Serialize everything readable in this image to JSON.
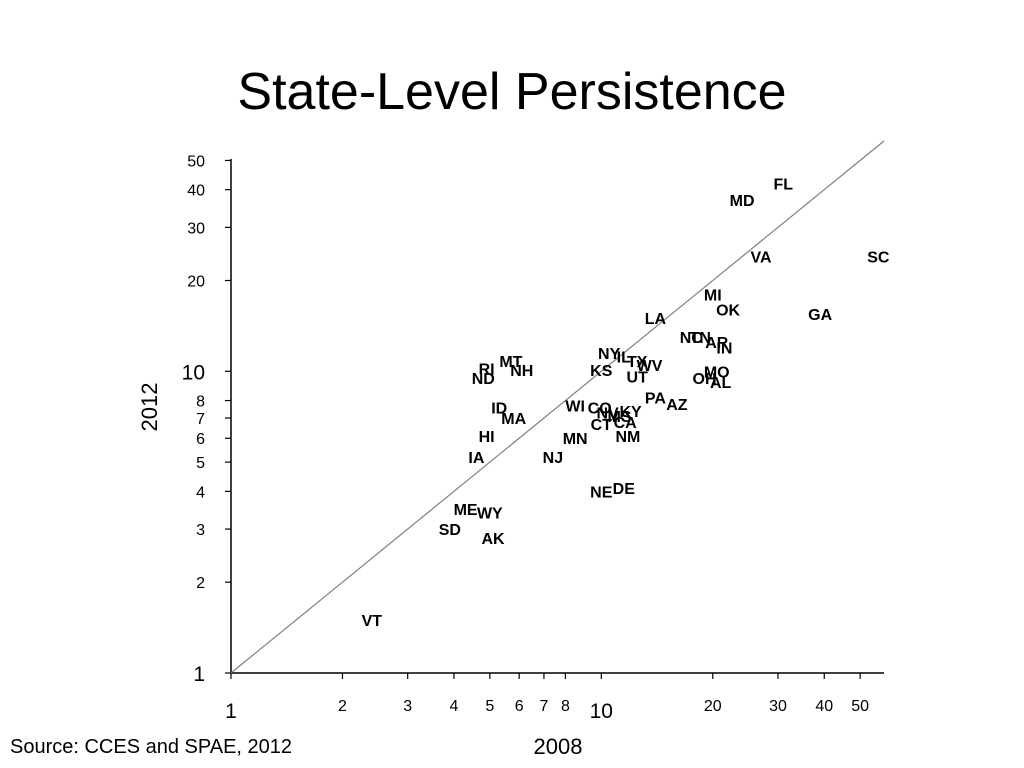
{
  "slide": {
    "title": "State-Level Persistence",
    "source": "Source:  CCES and SPAE, 2012"
  },
  "chart_data": {
    "type": "scatter",
    "xlabel": "2008",
    "ylabel": "2012",
    "x_scale": "log",
    "y_scale": "log",
    "xlim": [
      1,
      58
    ],
    "ylim": [
      1,
      58
    ],
    "x_ticks": [
      1,
      2,
      3,
      4,
      5,
      6,
      7,
      8,
      10,
      20,
      30,
      40,
      50
    ],
    "y_ticks": [
      1,
      2,
      3,
      4,
      5,
      6,
      7,
      8,
      10,
      20,
      30,
      40,
      50
    ],
    "reference_line": "y = x",
    "grid": false,
    "points": [
      {
        "label": "FL",
        "x": 31,
        "y": 42
      },
      {
        "label": "MD",
        "x": 24,
        "y": 37
      },
      {
        "label": "VA",
        "x": 27,
        "y": 24
      },
      {
        "label": "SC",
        "x": 56,
        "y": 24
      },
      {
        "label": "MI",
        "x": 20,
        "y": 18
      },
      {
        "label": "OK",
        "x": 22,
        "y": 16
      },
      {
        "label": "GA",
        "x": 39,
        "y": 15.5
      },
      {
        "label": "LA",
        "x": 14,
        "y": 15
      },
      {
        "label": "NC",
        "x": 17.5,
        "y": 13
      },
      {
        "label": "TN",
        "x": 18.5,
        "y": 13
      },
      {
        "label": "AR",
        "x": 20.5,
        "y": 12.5
      },
      {
        "label": "IN",
        "x": 21.5,
        "y": 12
      },
      {
        "label": "NY",
        "x": 10.5,
        "y": 11.5
      },
      {
        "label": "IL",
        "x": 11.5,
        "y": 11.2
      },
      {
        "label": "TX",
        "x": 12.5,
        "y": 10.8
      },
      {
        "label": "WV",
        "x": 13.5,
        "y": 10.5
      },
      {
        "label": "KS",
        "x": 10,
        "y": 10.1
      },
      {
        "label": "UT",
        "x": 12.5,
        "y": 9.6
      },
      {
        "label": "MO",
        "x": 20.5,
        "y": 10
      },
      {
        "label": "OH",
        "x": 19,
        "y": 9.5
      },
      {
        "label": "AL",
        "x": 21,
        "y": 9.2
      },
      {
        "label": "MT",
        "x": 5.7,
        "y": 10.8
      },
      {
        "label": "RI",
        "x": 4.9,
        "y": 10.2
      },
      {
        "label": "NH",
        "x": 6.1,
        "y": 10.1
      },
      {
        "label": "ND",
        "x": 4.8,
        "y": 9.5
      },
      {
        "label": "PA",
        "x": 14,
        "y": 8.2
      },
      {
        "label": "AZ",
        "x": 16,
        "y": 7.8
      },
      {
        "label": "ID",
        "x": 5.3,
        "y": 7.6
      },
      {
        "label": "WI",
        "x": 8.5,
        "y": 7.7
      },
      {
        "label": "CO",
        "x": 9.9,
        "y": 7.6
      },
      {
        "label": "NV",
        "x": 10.4,
        "y": 7.3
      },
      {
        "label": "KY",
        "x": 12,
        "y": 7.4
      },
      {
        "label": "MS",
        "x": 11.2,
        "y": 7.1
      },
      {
        "label": "MA",
        "x": 5.8,
        "y": 7
      },
      {
        "label": "CT",
        "x": 10,
        "y": 6.7
      },
      {
        "label": "CA",
        "x": 11.6,
        "y": 6.8
      },
      {
        "label": "HI",
        "x": 4.9,
        "y": 6.1
      },
      {
        "label": "MN",
        "x": 8.5,
        "y": 6
      },
      {
        "label": "NM",
        "x": 11.8,
        "y": 6.1
      },
      {
        "label": "IA",
        "x": 4.6,
        "y": 5.2
      },
      {
        "label": "NJ",
        "x": 7.4,
        "y": 5.2
      },
      {
        "label": "NE",
        "x": 10,
        "y": 4
      },
      {
        "label": "DE",
        "x": 11.5,
        "y": 4.1
      },
      {
        "label": "ME",
        "x": 4.3,
        "y": 3.5
      },
      {
        "label": "WY",
        "x": 5,
        "y": 3.4
      },
      {
        "label": "SD",
        "x": 3.9,
        "y": 3
      },
      {
        "label": "AK",
        "x": 5.1,
        "y": 2.8
      },
      {
        "label": "VT",
        "x": 2.4,
        "y": 1.5
      }
    ]
  }
}
